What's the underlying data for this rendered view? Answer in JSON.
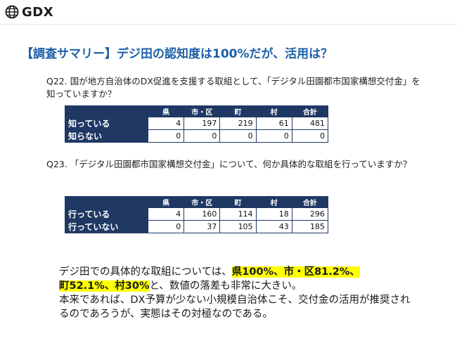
{
  "header": {
    "logo_text": "GDX",
    "logo_icon": "globe-icon"
  },
  "title": "【調査サマリー】デジ田の認知度は100%だが、活用は？",
  "q22": {
    "question": "Q22. 国が地方自治体のDX促進を支援する取組として、「デジタル田園都市国家構想交付金」を知っていますか？",
    "columns": [
      "県",
      "市・区",
      "町",
      "村",
      "合計"
    ],
    "rows": [
      {
        "label": "知っている",
        "values": [
          "4",
          "197",
          "219",
          "61",
          "481"
        ]
      },
      {
        "label": "知らない",
        "values": [
          "0",
          "0",
          "0",
          "0",
          "0"
        ]
      }
    ]
  },
  "q23": {
    "question": "Q23. 「デジタル田園都市国家構想交付金」について、何か具体的な取組を行っていますか？",
    "columns": [
      "県",
      "市・区",
      "町",
      "村",
      "合計"
    ],
    "rows": [
      {
        "label": "行っている",
        "values": [
          "4",
          "160",
          "114",
          "18",
          "296"
        ]
      },
      {
        "label": "行っていない",
        "values": [
          "0",
          "37",
          "105",
          "43",
          "185"
        ]
      }
    ]
  },
  "summary": {
    "part1": "デジ田での具体的な取組については、",
    "highlight1": "県100%、市・区81.2%、",
    "highlight2": "町52.1%、村30%",
    "part2": "と、数値の落差も非常に大きい。",
    "part3": "本来であれば、DX予算が少ない小規模自治体こそ、交付金の活用が推奨されるのであろうが、実態はその対極なのである。"
  }
}
